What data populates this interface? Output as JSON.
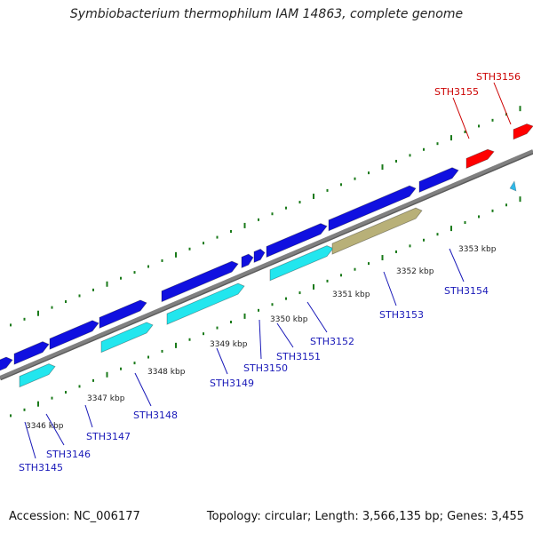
{
  "title": "Symbiobacterium thermophilum IAM 14863, complete genome",
  "footer": {
    "accession": "Accession: NC_006177",
    "summary": "Topology: circular; Length: 3,566,135 bp; Genes: 3,455"
  },
  "colors": {
    "forward_gene": "#1010e0",
    "reverse_gene": "#ff0000",
    "cds_feature": "#22e6ee",
    "other_feature": "#b8b078",
    "backbone": "#808080",
    "tick": "#1a7a1a",
    "label_forward": "#1818b8",
    "label_reverse": "#cc0000"
  },
  "scale": {
    "axis_ticks": [
      {
        "label": "3346 kbp",
        "kbp": 3346
      },
      {
        "label": "3347 kbp",
        "kbp": 3347
      },
      {
        "label": "3348 kbp",
        "kbp": 3348
      },
      {
        "label": "3349 kbp",
        "kbp": 3349
      },
      {
        "label": "3350 kbp",
        "kbp": 3350
      },
      {
        "label": "3351 kbp",
        "kbp": 3351
      },
      {
        "label": "3352 kbp",
        "kbp": 3352
      },
      {
        "label": "3353 kbp",
        "kbp": 3353
      }
    ]
  },
  "genes": [
    {
      "id": "STH3145",
      "strand": "+"
    },
    {
      "id": "STH3146",
      "strand": "+"
    },
    {
      "id": "STH3147",
      "strand": "+"
    },
    {
      "id": "STH3148",
      "strand": "+"
    },
    {
      "id": "STH3149",
      "strand": "+"
    },
    {
      "id": "STH3150",
      "strand": "+"
    },
    {
      "id": "STH3151",
      "strand": "+"
    },
    {
      "id": "STH3152",
      "strand": "+"
    },
    {
      "id": "STH3153",
      "strand": "+"
    },
    {
      "id": "STH3154",
      "strand": "+"
    },
    {
      "id": "STH3155",
      "strand": "-"
    },
    {
      "id": "STH3156",
      "strand": "-"
    }
  ]
}
